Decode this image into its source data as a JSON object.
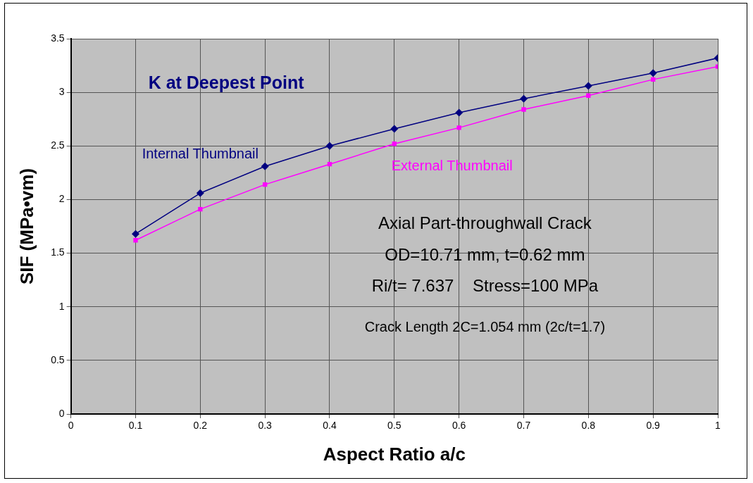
{
  "chart_data": {
    "type": "line",
    "title": "K at Deepest Point",
    "xlabel": "Aspect Ratio a/c",
    "ylabel": "SIF (MPa•vm)",
    "x": [
      0.1,
      0.2,
      0.3,
      0.4,
      0.5,
      0.6,
      0.7,
      0.8,
      0.9,
      1
    ],
    "series": [
      {
        "name": "Internal Thumbnail",
        "color": "#000080",
        "marker": "diamond",
        "values": [
          1.68,
          2.06,
          2.31,
          2.5,
          2.66,
          2.81,
          2.94,
          3.06,
          3.18,
          3.32
        ]
      },
      {
        "name": "External Thumbnail",
        "color": "#ff00ff",
        "marker": "square",
        "values": [
          1.62,
          1.91,
          2.14,
          2.33,
          2.52,
          2.67,
          2.84,
          2.97,
          3.12,
          3.24
        ]
      }
    ],
    "xlim": [
      0,
      1
    ],
    "xticks": [
      0,
      0.1,
      0.2,
      0.3,
      0.4,
      0.5,
      0.6,
      0.7,
      0.8,
      0.9,
      1
    ],
    "ylim": [
      0,
      3.5
    ],
    "yticks": [
      0,
      0.5,
      1,
      1.5,
      2,
      2.5,
      3,
      3.5
    ],
    "grid": true,
    "legend": false,
    "annotations": [
      "Axial Part-throughwall Crack",
      "OD=10.71 mm, t=0.62 mm",
      "Ri/t= 7.637    Stress=100 MPa",
      "Crack Length 2C=1.054 mm (2c/t=1.7)"
    ]
  }
}
